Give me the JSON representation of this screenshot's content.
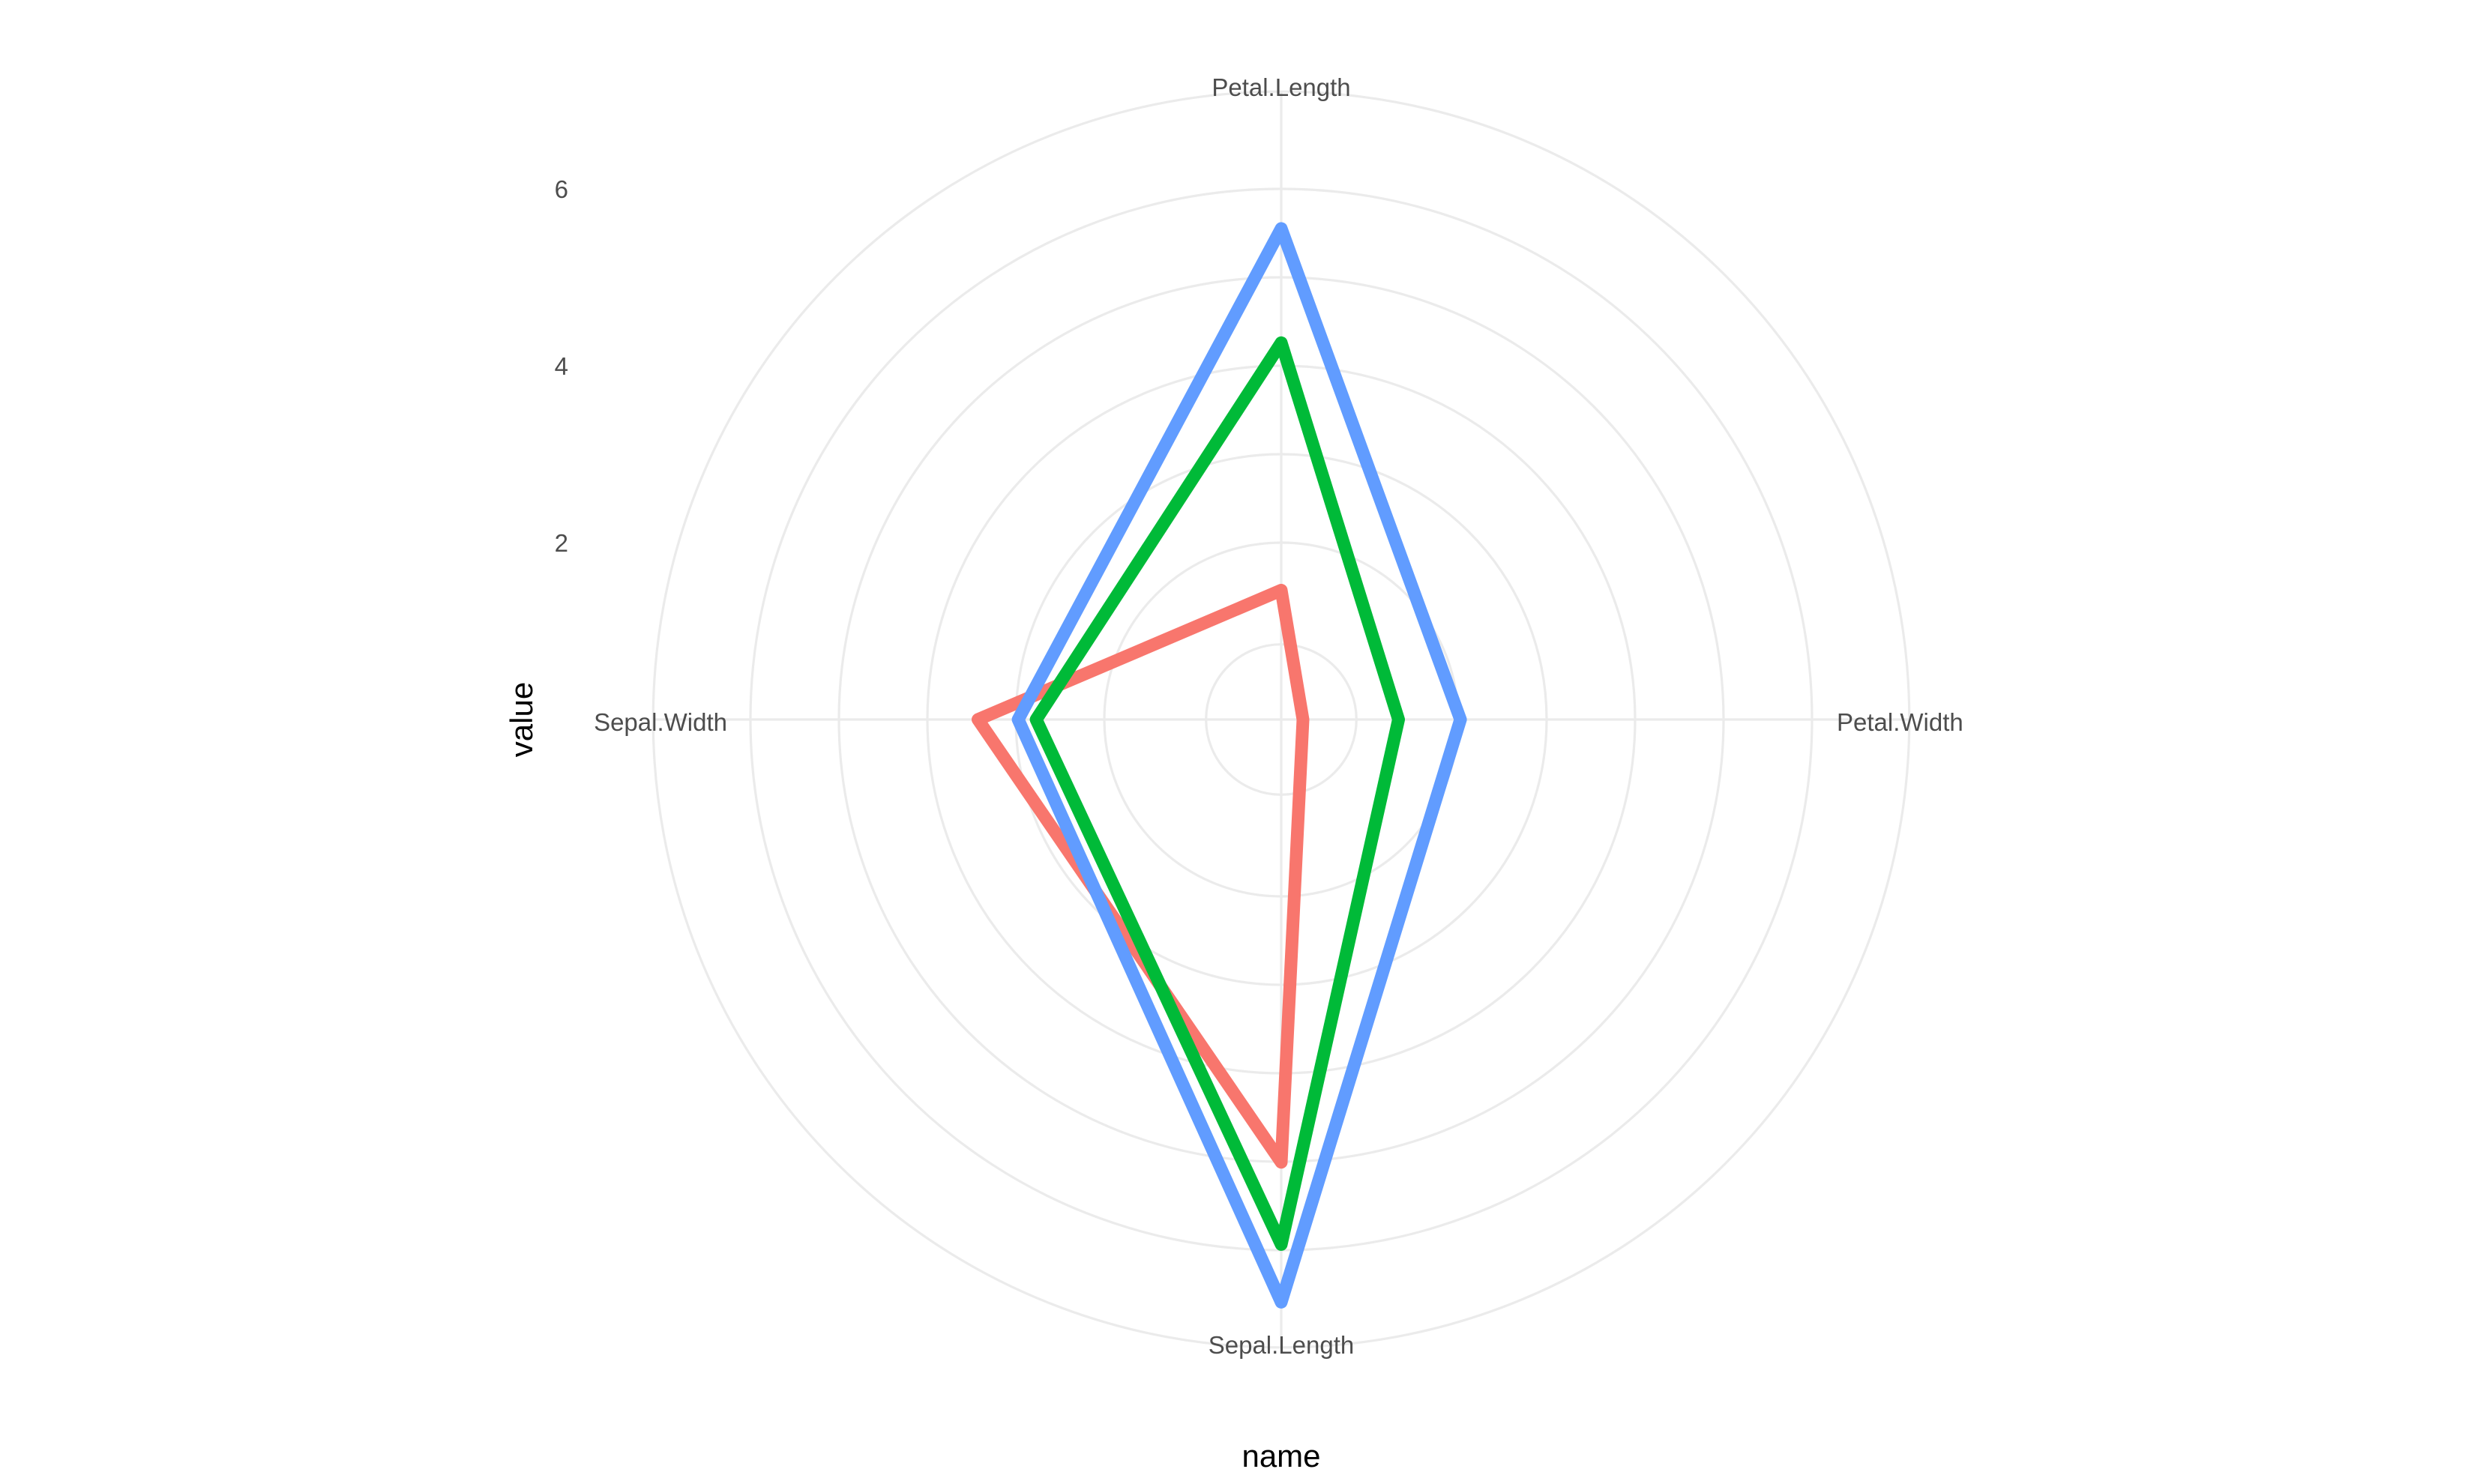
{
  "chart_data": {
    "type": "radar",
    "coord": "polar",
    "categories": [
      "Sepal.Length",
      "Sepal.Width",
      "Petal.Length",
      "Petal.Width"
    ],
    "xlabel": "name",
    "ylabel": "value",
    "r_ticks": [
      2,
      4,
      6
    ],
    "r_lim": [
      0,
      7
    ],
    "grid": true,
    "legend": "none",
    "series": [
      {
        "values": [
          5.006,
          3.428,
          1.462,
          0.246
        ],
        "color": "#F8766D"
      },
      {
        "values": [
          5.936,
          2.77,
          4.26,
          1.326
        ],
        "color": "#00BA38"
      },
      {
        "values": [
          6.588,
          2.974,
          5.552,
          2.026
        ],
        "color": "#619CFF"
      }
    ]
  }
}
